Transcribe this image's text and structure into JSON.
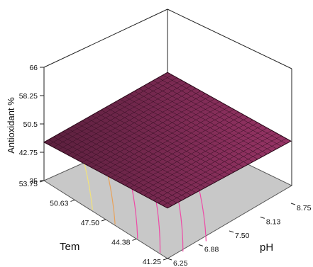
{
  "chart_data": {
    "type": "surface",
    "zlabel": "Antioxidant %",
    "xlabel": "Tem",
    "ylabel": "pH",
    "z_ticks": [
      "66",
      "58.25",
      "50.5",
      "42.75",
      "35"
    ],
    "z_range": [
      35,
      66
    ],
    "tem_ticks": [
      "53.75",
      "50.63",
      "47.50",
      "44.38",
      "41.25"
    ],
    "tem_range": [
      41.25,
      53.75
    ],
    "ph_ticks": [
      "6.25",
      "6.88",
      "7.50",
      "8.13",
      "8.75"
    ],
    "ph_range": [
      6.25,
      8.75
    ],
    "surface_corners": [
      {
        "tem": 53.75,
        "ph": 6.25,
        "value": 45.5
      },
      {
        "tem": 53.75,
        "ph": 8.75,
        "value": 49.5
      },
      {
        "tem": 41.25,
        "ph": 8.75,
        "value": 52.0
      },
      {
        "tem": 41.25,
        "ph": 6.25,
        "value": 48.8
      }
    ],
    "grid": false,
    "surface_color": "#7a2a52",
    "floor_color": "#c8c8c8"
  }
}
